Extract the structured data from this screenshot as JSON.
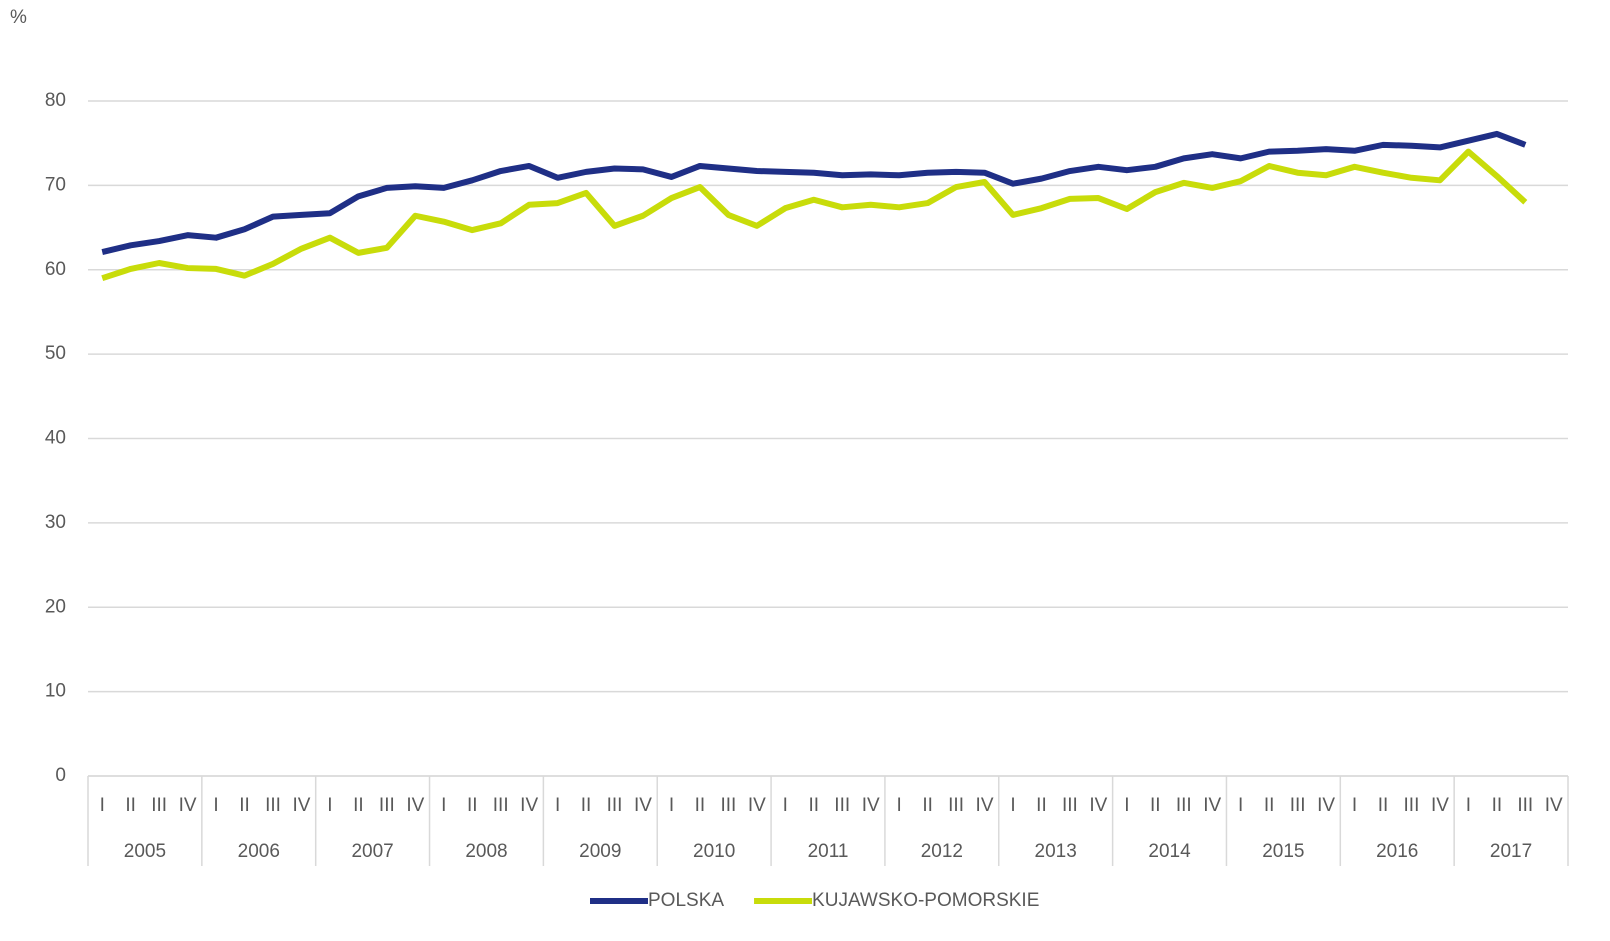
{
  "chart_data": {
    "type": "line",
    "y_unit": "%",
    "categories": [
      "I",
      "II",
      "III",
      "IV",
      "I",
      "II",
      "III",
      "IV",
      "I",
      "II",
      "III",
      "IV",
      "I",
      "II",
      "III",
      "IV",
      "I",
      "II",
      "III",
      "IV",
      "I",
      "II",
      "III",
      "IV",
      "I",
      "II",
      "III",
      "IV",
      "I",
      "II",
      "III",
      "IV",
      "I",
      "II",
      "III",
      "IV",
      "I",
      "II",
      "III",
      "IV",
      "I",
      "II",
      "III",
      "IV",
      "I",
      "II",
      "III",
      "IV",
      "I",
      "II",
      "III",
      "IV"
    ],
    "year_groups": [
      "2005",
      "2006",
      "2007",
      "2008",
      "2009",
      "2010",
      "2011",
      "2012",
      "2013",
      "2014",
      "2015",
      "2016",
      "2017"
    ],
    "series": [
      {
        "name": "POLSKA",
        "color": "#1f2f86",
        "values": [
          62.1,
          62.9,
          63.4,
          64.1,
          63.8,
          64.8,
          66.3,
          66.5,
          66.7,
          68.7,
          69.7,
          69.9,
          69.7,
          70.6,
          71.7,
          72.3,
          70.9,
          71.6,
          72.0,
          71.9,
          71.0,
          72.3,
          72.0,
          71.7,
          71.6,
          71.5,
          71.2,
          71.3,
          71.2,
          71.5,
          71.6,
          71.5,
          70.2,
          70.8,
          71.7,
          72.2,
          71.8,
          72.2,
          73.2,
          73.7,
          73.2,
          74.0,
          74.1,
          74.3,
          74.1,
          74.8,
          74.7,
          74.5,
          75.3,
          76.1,
          74.8,
          null
        ]
      },
      {
        "name": "KUJAWSKO-POMORSKIE",
        "color": "#c8dc0a",
        "values": [
          59.0,
          60.1,
          60.8,
          60.2,
          60.1,
          59.3,
          60.7,
          62.5,
          63.8,
          62.0,
          62.6,
          66.4,
          65.7,
          64.7,
          65.5,
          67.7,
          67.9,
          69.1,
          65.2,
          66.4,
          68.5,
          69.8,
          66.5,
          65.2,
          67.3,
          68.3,
          67.4,
          67.7,
          67.4,
          67.9,
          69.8,
          70.4,
          66.5,
          67.3,
          68.4,
          68.5,
          67.2,
          69.2,
          70.3,
          69.7,
          70.5,
          72.3,
          71.5,
          71.2,
          72.2,
          71.5,
          70.9,
          70.6,
          74.0,
          71.1,
          68.0,
          null
        ]
      }
    ],
    "ylim": [
      0,
      80
    ],
    "yticks": [
      0,
      10,
      20,
      30,
      40,
      50,
      60,
      70,
      80
    ],
    "grid": true,
    "legend": "bottom"
  }
}
